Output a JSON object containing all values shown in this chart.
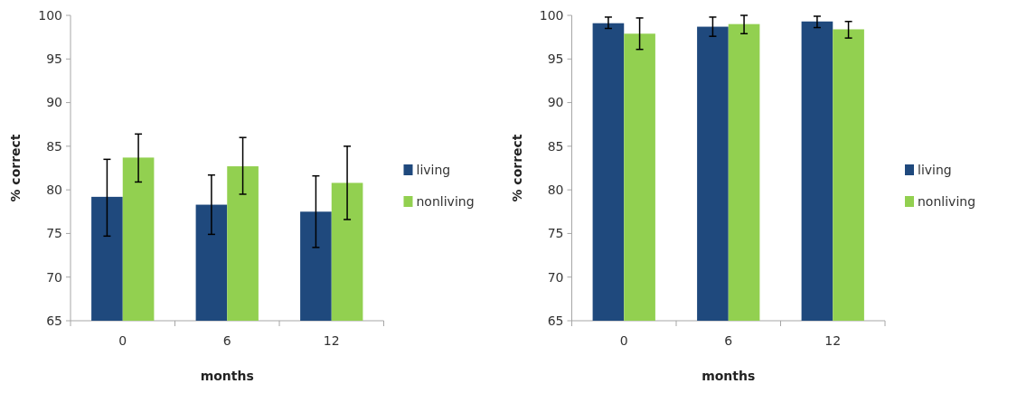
{
  "chart_data": [
    {
      "type": "bar",
      "xlabel": "months",
      "ylabel": "% correct",
      "categories": [
        "0",
        "6",
        "12"
      ],
      "ylim": [
        65,
        100
      ],
      "yticks": [
        65,
        70,
        75,
        80,
        85,
        90,
        95,
        100
      ],
      "grid": false,
      "legend": "right",
      "series": [
        {
          "name": "living",
          "color": "#1f497d",
          "values": [
            79.2,
            78.3,
            77.5
          ],
          "errors": [
            [
              74.7,
              83.5
            ],
            [
              74.9,
              81.7
            ],
            [
              73.4,
              81.6
            ]
          ]
        },
        {
          "name": "nonliving",
          "color": "#92d050",
          "values": [
            83.7,
            82.7,
            80.8
          ],
          "errors": [
            [
              80.9,
              86.4
            ],
            [
              79.5,
              86.0
            ],
            [
              76.6,
              85.0
            ]
          ]
        }
      ]
    },
    {
      "type": "bar",
      "xlabel": "months",
      "ylabel": "% correct",
      "categories": [
        "0",
        "6",
        "12"
      ],
      "ylim": [
        65,
        100
      ],
      "yticks": [
        65,
        70,
        75,
        80,
        85,
        90,
        95,
        100
      ],
      "grid": false,
      "legend": "right",
      "series": [
        {
          "name": "living",
          "color": "#1f497d",
          "values": [
            99.1,
            98.7,
            99.3
          ],
          "errors": [
            [
              98.5,
              99.8
            ],
            [
              97.6,
              99.8
            ],
            [
              98.6,
              99.9
            ]
          ]
        },
        {
          "name": "nonliving",
          "color": "#92d050",
          "values": [
            97.9,
            99.0,
            98.4
          ],
          "errors": [
            [
              96.1,
              99.7
            ],
            [
              97.9,
              100.0
            ],
            [
              97.4,
              99.3
            ]
          ]
        }
      ]
    }
  ]
}
